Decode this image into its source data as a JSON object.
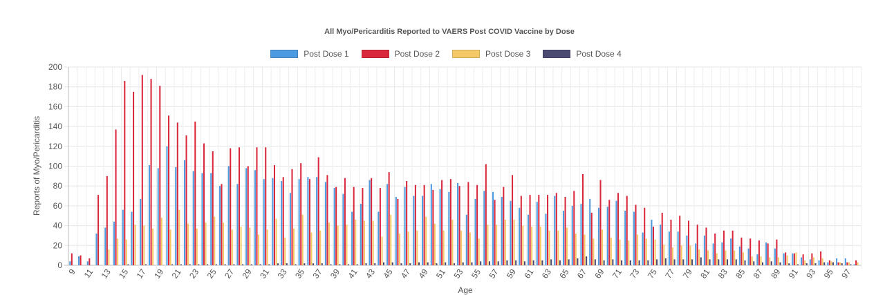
{
  "chart_data": {
    "type": "bar",
    "title": "All Myo/Pericarditis Reported to VAERS Post COVID Vaccine by Dose",
    "xlabel": "Age",
    "ylabel": "Reports of Myo/Pericarditis",
    "ylim": [
      0,
      200
    ],
    "yticks": [
      0,
      20,
      40,
      60,
      80,
      100,
      120,
      140,
      160,
      180,
      200
    ],
    "grid": true,
    "legend": "top-center",
    "categories": [
      "9",
      "10",
      "11",
      "12",
      "13",
      "14",
      "15",
      "16",
      "17",
      "18",
      "19",
      "20",
      "21",
      "22",
      "23",
      "24",
      "25",
      "26",
      "27",
      "28",
      "29",
      "30",
      "31",
      "32",
      "33",
      "34",
      "35",
      "36",
      "37",
      "38",
      "39",
      "40",
      "41",
      "42",
      "43",
      "44",
      "45",
      "46",
      "47",
      "48",
      "49",
      "50",
      "51",
      "52",
      "53",
      "54",
      "55",
      "56",
      "57",
      "58",
      "59",
      "60",
      "61",
      "62",
      "63",
      "64",
      "65",
      "66",
      "67",
      "68",
      "69",
      "70",
      "71",
      "72",
      "73",
      "74",
      "75",
      "76",
      "77",
      "78",
      "79",
      "80",
      "81",
      "82",
      "83",
      "84",
      "85",
      "86",
      "87",
      "88",
      "89",
      "90",
      "91",
      "92",
      "93",
      "94",
      "95",
      "96",
      "97",
      "98"
    ],
    "series": [
      {
        "name": "Post Dose 1",
        "color": "#4c9be0",
        "values": [
          4,
          9,
          4,
          32,
          38,
          44,
          56,
          54,
          67,
          101,
          98,
          120,
          99,
          106,
          95,
          93,
          93,
          80,
          100,
          82,
          98,
          96,
          87,
          88,
          85,
          73,
          87,
          89,
          89,
          84,
          78,
          72,
          54,
          62,
          86,
          54,
          82,
          69,
          79,
          70,
          70,
          82,
          77,
          74,
          83,
          51,
          67,
          75,
          74,
          69,
          65,
          58,
          51,
          64,
          52,
          70,
          55,
          60,
          62,
          67,
          58,
          59,
          65,
          55,
          54,
          33,
          46,
          41,
          34,
          34,
          30,
          22,
          30,
          22,
          23,
          27,
          19,
          17,
          11,
          23,
          17,
          12,
          12,
          8,
          6,
          5,
          3,
          7,
          7,
          1
        ]
      },
      {
        "name": "Post Dose 2",
        "color": "#d9283c",
        "values": [
          12,
          10,
          7,
          71,
          90,
          137,
          186,
          175,
          192,
          188,
          181,
          151,
          144,
          131,
          145,
          123,
          115,
          82,
          118,
          119,
          100,
          119,
          119,
          101,
          89,
          97,
          103,
          87,
          109,
          91,
          79,
          88,
          79,
          78,
          88,
          78,
          94,
          67,
          85,
          81,
          81,
          76,
          86,
          87,
          80,
          84,
          81,
          102,
          66,
          79,
          91,
          70,
          71,
          71,
          71,
          73,
          69,
          75,
          92,
          53,
          86,
          66,
          73,
          70,
          61,
          58,
          39,
          53,
          46,
          50,
          45,
          41,
          38,
          32,
          35,
          35,
          28,
          27,
          25,
          22,
          26,
          13,
          12,
          11,
          12,
          14,
          5,
          3,
          3,
          5
        ]
      },
      {
        "name": "Post Dose 3",
        "color": "#f6c968",
        "values": [
          0,
          0,
          0,
          0,
          16,
          27,
          26,
          41,
          40,
          37,
          48,
          36,
          56,
          42,
          37,
          43,
          49,
          43,
          36,
          39,
          38,
          31,
          36,
          47,
          28,
          37,
          51,
          33,
          35,
          43,
          40,
          41,
          46,
          45,
          45,
          29,
          51,
          32,
          34,
          35,
          49,
          42,
          35,
          46,
          35,
          33,
          27,
          41,
          41,
          46,
          46,
          40,
          39,
          39,
          35,
          35,
          38,
          32,
          31,
          27,
          36,
          28,
          26,
          25,
          31,
          27,
          26,
          21,
          18,
          20,
          20,
          16,
          15,
          12,
          15,
          15,
          13,
          9,
          9,
          8,
          8,
          10,
          13,
          5,
          8,
          7,
          4,
          3,
          3,
          3
        ]
      },
      {
        "name": "Post Dose 4",
        "color": "#4b4a72",
        "values": [
          0,
          0,
          0,
          0,
          0,
          0,
          1,
          0,
          1,
          0,
          0,
          1,
          1,
          1,
          1,
          1,
          1,
          1,
          1,
          1,
          1,
          1,
          1,
          2,
          2,
          1,
          2,
          2,
          2,
          1,
          1,
          1,
          1,
          2,
          2,
          3,
          3,
          2,
          2,
          3,
          3,
          2,
          3,
          2,
          3,
          3,
          4,
          4,
          4,
          5,
          5,
          4,
          5,
          5,
          6,
          5,
          6,
          7,
          9,
          6,
          5,
          6,
          5,
          5,
          5,
          5,
          6,
          7,
          6,
          6,
          6,
          8,
          6,
          6,
          6,
          6,
          5,
          4,
          3,
          4,
          3,
          2,
          1,
          2,
          2,
          3,
          3,
          2,
          1,
          0
        ]
      }
    ]
  }
}
